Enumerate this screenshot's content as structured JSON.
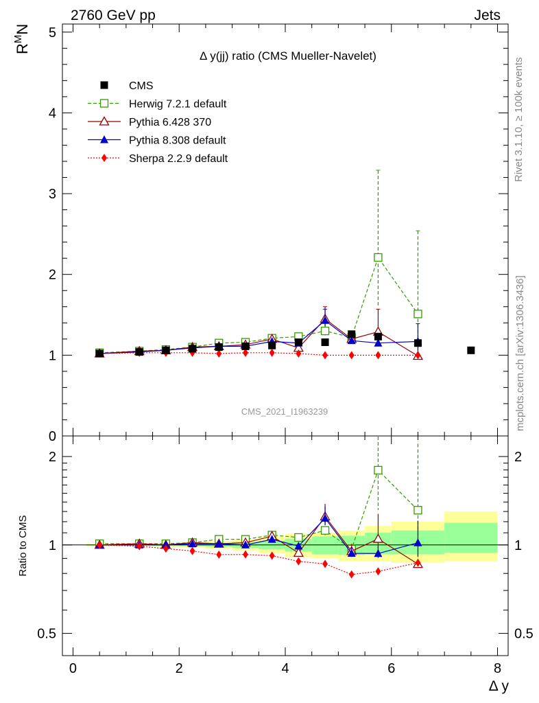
{
  "header": {
    "left": "2760 GeV pp",
    "right": "Jets"
  },
  "side": {
    "rivet": "Rivet 3.1.10, ≥ 100k events",
    "mcplots": "mcplots.cern.ch [arXiv:1306.3436]"
  },
  "chart_data": {
    "type": "scatter",
    "title": "Δ y(jj) ratio (CMS Mueller-Navelet)",
    "watermark": "CMS_2021_I1963239",
    "xlabel": "Δ y",
    "ylabel_main": "R",
    "ylabel_main_sup": "M",
    "ylabel_main_sub": "N",
    "ylabel_ratio": "Ratio to CMS",
    "xlim": [
      -0.2,
      8.2
    ],
    "ylim_main": [
      0,
      5.1
    ],
    "ylim_ratio_log": [
      0.42,
      2.35
    ],
    "xticks": [
      "0",
      "2",
      "4",
      "6",
      "8"
    ],
    "yticks_main": [
      "1",
      "2",
      "3",
      "4",
      "5"
    ],
    "yticks_main_zero": "0",
    "yticks_ratio": [
      "0.5",
      "1",
      "2"
    ],
    "legend_position": "top-left",
    "x": [
      0.5,
      1.25,
      1.75,
      2.25,
      2.75,
      3.25,
      3.75,
      4.25,
      4.75,
      5.25,
      5.75,
      6.5,
      7.5
    ],
    "series": [
      {
        "name": "CMS",
        "color": "#000000",
        "marker": "square-filled",
        "line": "none",
        "x": [
          0.5,
          1.25,
          1.75,
          2.25,
          2.75,
          3.25,
          3.75,
          4.25,
          4.75,
          5.25,
          5.75,
          6.5,
          7.5
        ],
        "values": [
          1.02,
          1.04,
          1.06,
          1.08,
          1.1,
          1.11,
          1.12,
          1.16,
          1.16,
          1.26,
          1.23,
          1.15,
          1.06
        ]
      },
      {
        "name": "Herwig 7.2.1 default",
        "color": "#339900",
        "marker": "square-open",
        "line": "dashed",
        "x": [
          0.5,
          1.25,
          1.75,
          2.25,
          2.75,
          3.25,
          3.75,
          4.25,
          4.75,
          5.25,
          5.75,
          6.5
        ],
        "values": [
          1.03,
          1.05,
          1.07,
          1.1,
          1.15,
          1.16,
          1.21,
          1.23,
          1.3,
          1.22,
          2.21,
          1.51
        ],
        "err": [
          0,
          0,
          0,
          0,
          0,
          0,
          0,
          0,
          0.1,
          0.05,
          1.08,
          1.03
        ]
      },
      {
        "name": "Pythia 6.428 370",
        "color": "#990000",
        "marker": "triangle-open",
        "line": "solid",
        "x": [
          0.5,
          1.25,
          1.75,
          2.25,
          2.75,
          3.25,
          3.75,
          4.25,
          4.75,
          5.25,
          5.75,
          6.5
        ],
        "values": [
          1.02,
          1.05,
          1.06,
          1.1,
          1.11,
          1.13,
          1.2,
          1.09,
          1.45,
          1.2,
          1.29,
          0.99
        ],
        "err": [
          0,
          0,
          0,
          0,
          0,
          0,
          0,
          0,
          0.15,
          0.07,
          0.28,
          0
        ]
      },
      {
        "name": "Pythia 8.308 default",
        "color": "#0000cc",
        "marker": "triangle-filled",
        "line": "solid",
        "x": [
          0.5,
          1.25,
          1.75,
          2.25,
          2.75,
          3.25,
          3.75,
          4.25,
          4.75,
          5.25,
          5.75,
          6.5
        ],
        "values": [
          1.02,
          1.04,
          1.06,
          1.09,
          1.11,
          1.11,
          1.17,
          1.15,
          1.43,
          1.18,
          1.15,
          1.17
        ],
        "err": [
          0,
          0,
          0,
          0,
          0,
          0,
          0,
          0,
          0.14,
          0.06,
          0.07,
          0.22
        ]
      },
      {
        "name": "Sherpa 2.2.9 default",
        "color": "#ff0000",
        "marker": "diamond-filled",
        "line": "dotted",
        "x": [
          0.5,
          1.25,
          1.75,
          2.25,
          2.75,
          3.25,
          3.75,
          4.25,
          4.75,
          5.25,
          5.75,
          6.5
        ],
        "values": [
          1.02,
          1.03,
          1.03,
          1.03,
          1.02,
          1.03,
          1.03,
          1.02,
          1.0,
          1.0,
          1.0,
          1.0
        ],
        "err": [
          0,
          0,
          0,
          0,
          0,
          0,
          0,
          0,
          0,
          0,
          0,
          0
        ]
      }
    ],
    "ratio_bands": {
      "edges": [
        0.25,
        1.0,
        1.5,
        2.0,
        2.5,
        3.0,
        3.5,
        4.0,
        4.5,
        5.0,
        5.5,
        6.0,
        7.0,
        8.0
      ],
      "inner_lo": [
        0.995,
        0.995,
        0.993,
        0.99,
        0.985,
        0.975,
        0.965,
        0.95,
        0.93,
        0.925,
        0.93,
        0.93,
        0.94
      ],
      "inner_hi": [
        1.005,
        1.005,
        1.007,
        1.01,
        1.015,
        1.025,
        1.035,
        1.05,
        1.07,
        1.075,
        1.1,
        1.12,
        1.19
      ],
      "outer_lo": [
        0.99,
        0.99,
        0.985,
        0.98,
        0.97,
        0.955,
        0.935,
        0.91,
        0.9,
        0.88,
        0.88,
        0.87,
        0.88
      ],
      "outer_hi": [
        1.01,
        1.01,
        1.015,
        1.02,
        1.03,
        1.045,
        1.065,
        1.09,
        1.1,
        1.12,
        1.16,
        1.2,
        1.3
      ],
      "inner_color": "#99ff99",
      "outer_color": "#ffff99"
    }
  }
}
